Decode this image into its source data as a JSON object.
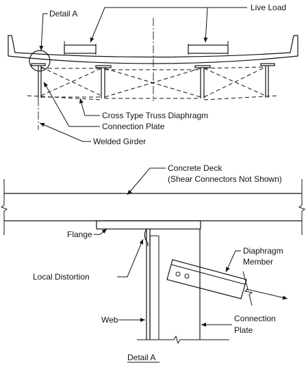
{
  "top_view": {
    "labels": {
      "detail_a": "Detail A",
      "live_load": "Live Load",
      "cross_type_truss_diaphragm": "Cross Type Truss Diaphragm",
      "connection_plate": "Connection Plate",
      "welded_girder": "Welded Girder"
    }
  },
  "detail_view": {
    "labels": {
      "concrete_deck": "Concrete Deck",
      "shear_connectors_note": "(Shear Connectors Not Shown)",
      "flange": "Flange",
      "local_distortion": "Local Distortion",
      "diaphragm_line1": "Diaphragm",
      "diaphragm_line2": "Member",
      "web": "Web",
      "connection_plate_line1": "Connection",
      "connection_plate_line2": "Plate",
      "caption": "Detail A"
    }
  }
}
